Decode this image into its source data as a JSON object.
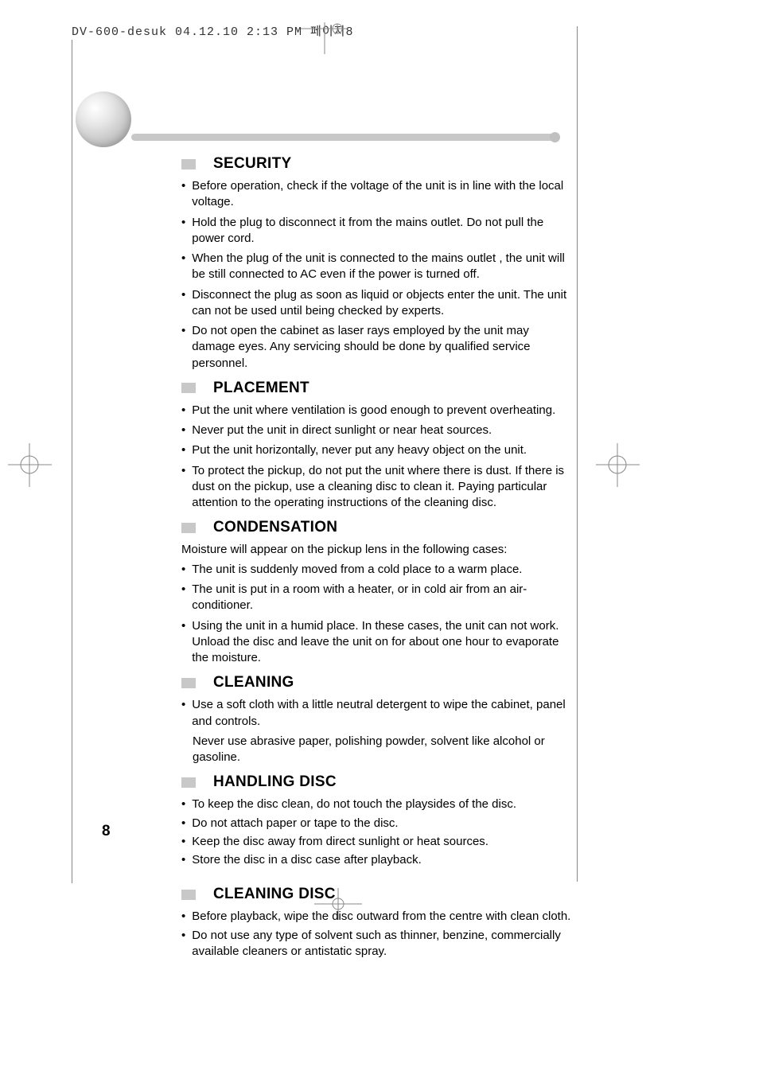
{
  "header": "DV-600-desuk  04.12.10 2:13 PM  페이지8",
  "page_number": "8",
  "colors": {
    "heading_box": "#c8c8c8",
    "text": "#000000",
    "bar": "#c8c8c8"
  },
  "sections": [
    {
      "title": "SECURITY",
      "intro": null,
      "items": [
        "Before operation, check if the voltage of the unit is in line with the local voltage.",
        "Hold the plug to disconnect it from the mains outlet. Do not pull the power cord.",
        "When the plug of the unit is connected to the mains outlet , the unit will be still connected to AC even if the power is turned off.",
        "Disconnect the plug as soon as liquid or objects enter the unit. The unit can not be used until being checked by experts.",
        "Do not open the cabinet as laser rays employed by the unit may damage eyes. Any servicing should be done by qualified service personnel."
      ]
    },
    {
      "title": "PLACEMENT",
      "intro": null,
      "items": [
        "Put the unit where ventilation is good enough to prevent overheating.",
        "Never put the unit in direct sunlight or near heat sources.",
        "Put the unit horizontally, never put any heavy object on the unit.",
        "To protect the pickup, do not put the unit where there is dust. If there is dust on the pickup, use a cleaning disc to clean it. Paying particular attention to the operating instructions of the cleaning disc."
      ]
    },
    {
      "title": "CONDENSATION",
      "intro": "Moisture will appear on the pickup lens in the following cases:",
      "items": [
        "The unit is suddenly moved from a cold place to a warm place.",
        "The unit is put in a room with a heater, or in cold air from an air-conditioner.",
        "Using the unit in a humid place. In these cases, the unit can not work. Unload the disc and leave the unit on for about one hour to evaporate the moisture."
      ]
    },
    {
      "title": "CLEANING",
      "intro": null,
      "items": [
        "Use a soft cloth with a little neutral detergent to wipe the cabinet, panel and controls."
      ],
      "note": "Never use abrasive paper, polishing powder, solvent like alcohol or gasoline."
    },
    {
      "title": "HANDLING DISC",
      "intro": null,
      "tight": true,
      "items": [
        "To keep the disc clean, do not touch the  playsides of the disc.",
        "Do not attach paper or tape to the disc.",
        "Keep  the  disc away from direct sunlight or heat sources.",
        "Store the disc in  a disc case after playback."
      ]
    },
    {
      "title": "CLEANING DISC",
      "intro": null,
      "tight": true,
      "spaced": true,
      "items": [
        "Before playback, wipe the  disc outward from the centre with clean cloth.",
        "Do not use any type of solvent  such as thinner,  benzine,  commercially available cleaners or antistatic spray."
      ]
    }
  ]
}
